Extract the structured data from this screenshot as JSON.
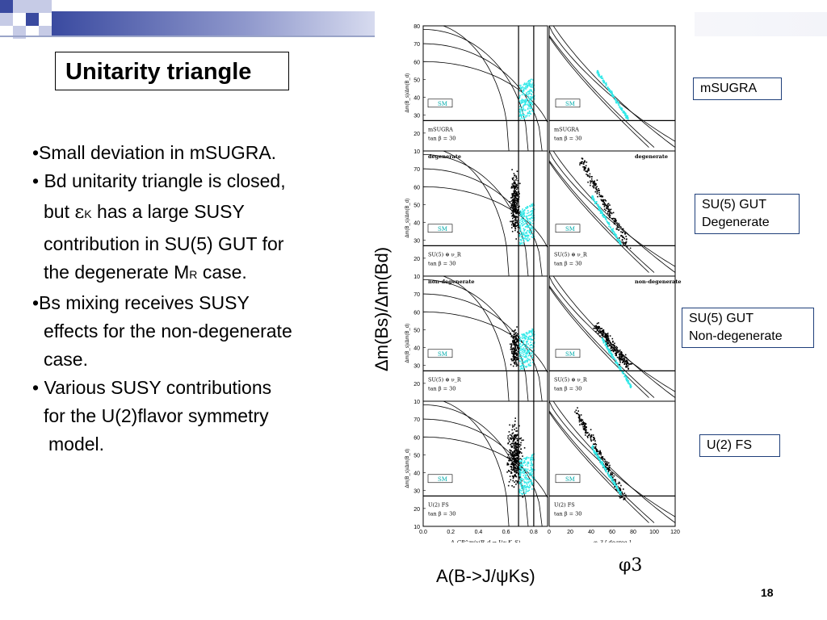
{
  "slide": {
    "title": "Unitarity triangle",
    "page_number": "18",
    "bullets": [
      "•Small deviation in mSUGRA.",
      "• Bd unitarity triangle is closed,",
      "but",
      "has a large SUSY",
      "contribution in SU(5) GUT for",
      "the degenerate M",
      "case.",
      "•Bs mixing receives SUSY",
      "effects for the non-degenerate",
      "case.",
      "• Various SUSY contributions",
      "for the U(2)flavor symmetry",
      "model."
    ],
    "epsilon_symbol": "ε",
    "epsilon_sub": "K",
    "mr_sub": "R"
  },
  "labels": {
    "msugra": "mSUGRA",
    "su5_deg_1": "SU(5) GUT",
    "su5_deg_2": "Degenerate",
    "su5_nondeg_1": "SU(5) GUT",
    "su5_nondeg_2": "Non-degenerate",
    "u2fs": "U(2) FS"
  },
  "axis_labels": {
    "y": "Δm(Bs)/Δm(Bd)",
    "x_left": "A(B->J/ψKs)",
    "x_right": "φ3"
  },
  "panel_text": {
    "left_ylabel": "Δm(B_s)/Δm(B_d)",
    "sm": "SM",
    "tan_beta": "tan β = 30",
    "rows": [
      {
        "model": "mSUGRA",
        "tag": ""
      },
      {
        "model": "SU(5) ⊕ ν_R",
        "tag": "degenerate"
      },
      {
        "model": "SU(5) ⊕ ν_R",
        "tag": "non-degenerate"
      },
      {
        "model": "U(2) FS",
        "tag": ""
      }
    ],
    "x_left_caption": "A_CP^mix(B_d → J/ψ K_S)",
    "x_right_caption": "φ_3 [ degree ]"
  },
  "chart_data": {
    "type": "scatter",
    "left_x_ticks": [
      "0.0",
      "0.2",
      "0.4",
      "0.6",
      "0.8"
    ],
    "right_x_ticks": [
      "0",
      "20",
      "40",
      "60",
      "80",
      "100",
      "120"
    ],
    "y_ticks": [
      "10",
      "20",
      "30",
      "40",
      "50",
      "60",
      "70",
      "80"
    ],
    "left_xlim": [
      0.0,
      0.9
    ],
    "right_xlim": [
      0,
      120
    ],
    "ylim": [
      10,
      80
    ],
    "sm_band_y": [
      27,
      80
    ],
    "left_vlines_x": [
      0.69,
      0.8
    ],
    "colors": {
      "sm": "#33e8e8",
      "susy": "#000000"
    }
  }
}
